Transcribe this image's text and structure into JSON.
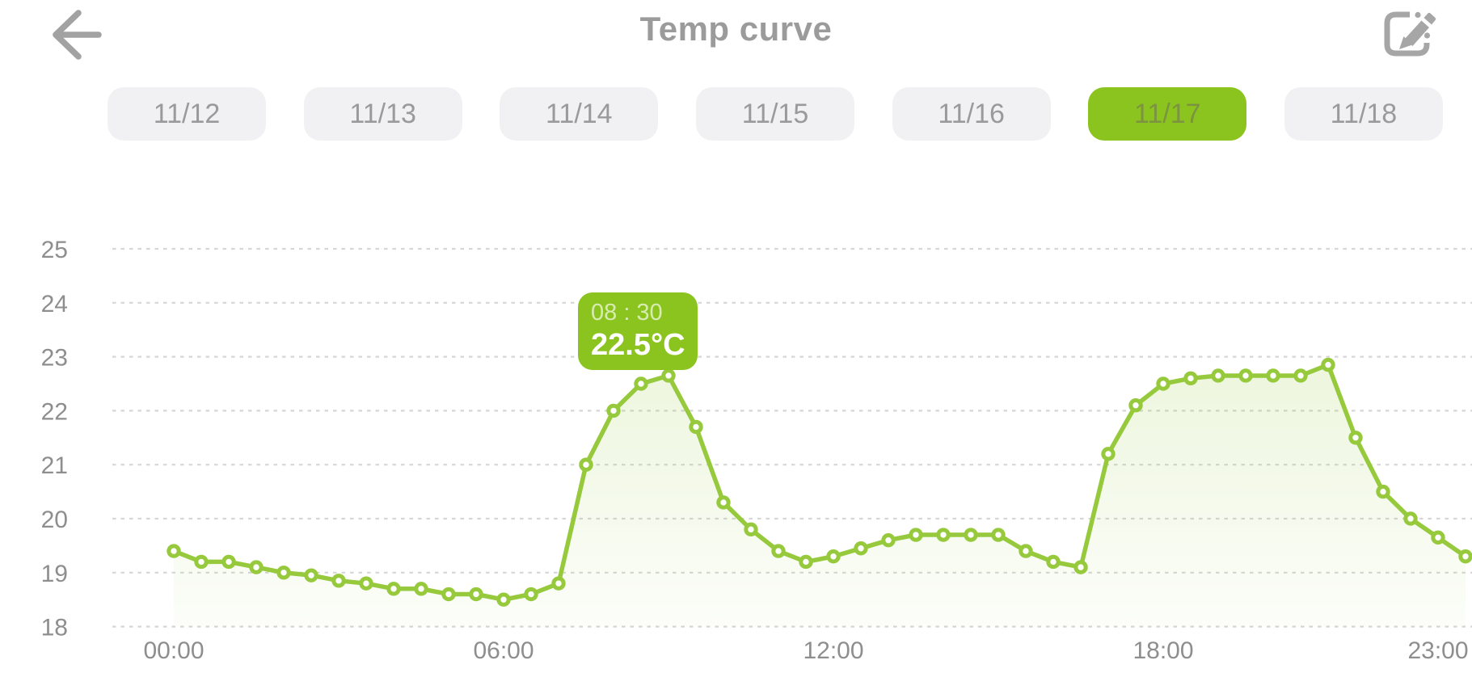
{
  "header": {
    "title": "Temp curve",
    "back_icon": "arrow-left",
    "edit_icon": "pencil-square"
  },
  "dates": {
    "selected": "11/17",
    "items": [
      {
        "label": "11/12",
        "selected": false
      },
      {
        "label": "11/13",
        "selected": false
      },
      {
        "label": "11/14",
        "selected": false
      },
      {
        "label": "11/15",
        "selected": false
      },
      {
        "label": "11/16",
        "selected": false
      },
      {
        "label": "11/17",
        "selected": true
      },
      {
        "label": "11/18",
        "selected": false
      }
    ]
  },
  "tooltip": {
    "time": "08 : 30",
    "temp": "22.5°C",
    "anchor_point_index": 17
  },
  "colors": {
    "accent": "#8cc41f",
    "line": "#96c93c",
    "area_fill": "#96c93c",
    "grid": "#d6d6d6",
    "axis_text": "#8e8e8e",
    "header_text": "#9b9b9b",
    "chip_bg": "#f1f1f3",
    "chip_text": "#9a9a9a",
    "chip_selected_text": "#7c9440",
    "tooltip_text": "#ffffff"
  },
  "chart_data": {
    "type": "line",
    "title": "Temp curve",
    "ylabel": "",
    "xlabel": "",
    "ylim": [
      18,
      25
    ],
    "grid": "dotted-horizontal",
    "legend": "none",
    "y_ticks": [
      25,
      24,
      23,
      22,
      21,
      20,
      19,
      18
    ],
    "x_ticks": [
      {
        "label": "00:00",
        "hour": 0
      },
      {
        "label": "06:00",
        "hour": 6
      },
      {
        "label": "12:00",
        "hour": 12
      },
      {
        "label": "18:00",
        "hour": 18
      },
      {
        "label": "23:00",
        "hour": 23
      }
    ],
    "x": [
      "00:00",
      "00:30",
      "01:00",
      "01:30",
      "02:00",
      "02:30",
      "03:00",
      "03:30",
      "04:00",
      "04:30",
      "05:00",
      "05:30",
      "06:00",
      "06:30",
      "07:00",
      "07:30",
      "08:00",
      "08:30",
      "09:00",
      "09:30",
      "10:00",
      "10:30",
      "11:00",
      "11:30",
      "12:00",
      "12:30",
      "13:00",
      "13:30",
      "14:00",
      "14:30",
      "15:00",
      "15:30",
      "16:00",
      "16:30",
      "17:00",
      "17:30",
      "18:00",
      "18:30",
      "19:00",
      "19:30",
      "20:00",
      "20:30",
      "21:00",
      "21:30",
      "22:00",
      "22:30",
      "23:00",
      "23:30"
    ],
    "values": [
      19.4,
      19.2,
      19.2,
      19.1,
      19.0,
      18.95,
      18.85,
      18.8,
      18.7,
      18.7,
      18.6,
      18.6,
      18.5,
      18.6,
      18.8,
      21.0,
      22.0,
      22.5,
      22.65,
      21.7,
      20.3,
      19.8,
      19.4,
      19.2,
      19.3,
      19.45,
      19.6,
      19.7,
      19.7,
      19.7,
      19.7,
      19.4,
      19.2,
      19.1,
      21.2,
      22.1,
      22.5,
      22.6,
      22.65,
      22.65,
      22.65,
      22.65,
      22.85,
      21.5,
      20.5,
      20.0,
      19.65,
      19.3
    ]
  }
}
